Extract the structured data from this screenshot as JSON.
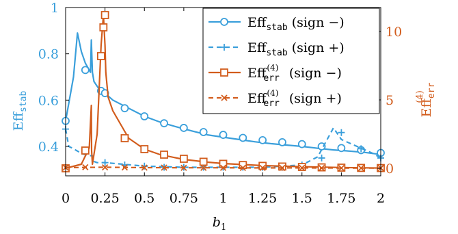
{
  "chart_data": {
    "type": "line",
    "x_axis": {
      "label": "b",
      "label_sub": "1",
      "range": [
        0,
        2
      ],
      "ticks": [
        "0",
        "0.25",
        "0.5",
        "0.75",
        "1",
        "1.25",
        "1.5",
        "1.75",
        "2"
      ]
    },
    "y_left": {
      "label_main": "Eff",
      "label_sub": "stab",
      "range": [
        0.3,
        1.0
      ],
      "ticks": [
        "0.4",
        "0.6",
        "0.8",
        "1"
      ],
      "color": "#3a9fdb"
    },
    "y_right": {
      "label_main": "Eff",
      "label_sub": "err",
      "label_sup": "(4)",
      "range": [
        -0.3,
        11.4
      ],
      "ticks": [
        "0",
        "5",
        "10"
      ],
      "color": "#d25c1c"
    },
    "legend": {
      "placement": "top-right",
      "entries": [
        {
          "main": "Eff",
          "sub": "stab",
          "sup": "",
          "sign": "(sign −)",
          "color": "#3a9fdb",
          "dash": false,
          "marker": "circle"
        },
        {
          "main": "Eff",
          "sub": "stab",
          "sup": "",
          "sign": "(sign +)",
          "color": "#3a9fdb",
          "dash": true,
          "marker": "plus"
        },
        {
          "main": "Eff",
          "sub": "err",
          "sup": "(4)",
          "sign": "(sign −)",
          "color": "#d25c1c",
          "dash": false,
          "marker": "square"
        },
        {
          "main": "Eff",
          "sub": "err",
          "sup": "(4)",
          "sign": "(sign +)",
          "color": "#d25c1c",
          "dash": true,
          "marker": "cross"
        }
      ]
    },
    "series": [
      {
        "name": "Eff_stab (sign −)",
        "axis": "left",
        "color": "#3a9fdb",
        "dash": false,
        "marker": "circle",
        "x": [
          0,
          0.05,
          0.075,
          0.1,
          0.125,
          0.15,
          0.158,
          0.163,
          0.17,
          0.18,
          0.2,
          0.22,
          0.24,
          0.25,
          0.3,
          0.4,
          0.5,
          0.6,
          0.7,
          0.8,
          0.9,
          1.0,
          1.1,
          1.2,
          1.3,
          1.4,
          1.5,
          1.6,
          1.7,
          1.8,
          1.9,
          2.0
        ],
        "y": [
          0.51,
          0.7,
          0.89,
          0.81,
          0.76,
          0.73,
          0.72,
          0.86,
          0.72,
          0.68,
          0.66,
          0.64,
          0.636,
          0.63,
          0.6,
          0.565,
          0.53,
          0.505,
          0.485,
          0.467,
          0.45,
          0.44,
          0.43,
          0.42,
          0.412,
          0.406,
          0.4,
          0.392,
          0.385,
          0.38,
          0.374,
          0.365
        ],
        "marker_x": [
          0,
          0.125,
          0.225,
          0.25,
          0.375,
          0.5,
          0.625,
          0.75,
          0.875,
          1.0,
          1.125,
          1.25,
          1.375,
          1.5,
          1.625,
          1.75,
          1.875,
          2.0
        ],
        "marker_y": [
          0.51,
          0.73,
          0.64,
          0.63,
          0.565,
          0.53,
          0.5,
          0.48,
          0.462,
          0.45,
          0.437,
          0.427,
          0.418,
          0.41,
          0.4,
          0.393,
          0.384,
          0.372
        ]
      },
      {
        "name": "Eff_stab (sign +)",
        "axis": "left",
        "color": "#3a9fdb",
        "dash": true,
        "marker": "plus",
        "x": [
          0,
          0.02,
          0.05,
          0.1,
          0.15,
          0.17,
          0.18,
          0.2,
          0.25,
          0.5,
          0.75,
          1.0,
          1.25,
          1.5,
          1.6,
          1.7,
          1.75,
          1.85,
          1.95,
          2.0
        ],
        "y": [
          0.475,
          0.4,
          0.39,
          0.37,
          0.36,
          0.36,
          0.335,
          0.33,
          0.33,
          0.315,
          0.31,
          0.31,
          0.31,
          0.32,
          0.355,
          0.48,
          0.43,
          0.4,
          0.37,
          0.35
        ],
        "marker_x": [
          0,
          0.125,
          0.25,
          0.375,
          0.5,
          0.625,
          0.75,
          0.875,
          1.0,
          1.125,
          1.25,
          1.375,
          1.5,
          1.625,
          1.75,
          1.875,
          2.0
        ],
        "marker_y": [
          0.475,
          0.37,
          0.33,
          0.32,
          0.315,
          0.31,
          0.31,
          0.31,
          0.31,
          0.31,
          0.31,
          0.31,
          0.32,
          0.35,
          0.46,
          0.39,
          0.35
        ]
      },
      {
        "name": "Eff_err^(4) (sign −)",
        "axis": "right",
        "color": "#d25c1c",
        "dash": false,
        "marker": "square",
        "x": [
          0,
          0.1,
          0.15,
          0.163,
          0.165,
          0.17,
          0.2,
          0.225,
          0.24,
          0.25,
          0.255,
          0.27,
          0.3,
          0.4,
          0.5,
          0.6,
          0.75,
          0.9,
          1.0,
          1.25,
          1.5,
          1.75,
          2.0
        ],
        "y": [
          0,
          0.3,
          1.5,
          4.6,
          1.3,
          0.3,
          2.5,
          9.0,
          11.2,
          9.0,
          7.0,
          5.2,
          4.2,
          2.2,
          1.4,
          1.0,
          0.65,
          0.45,
          0.35,
          0.2,
          0.12,
          0.06,
          0.02
        ],
        "marker_x": [
          0,
          0.125,
          0.225,
          0.24,
          0.25,
          0.375,
          0.5,
          0.625,
          0.75,
          0.875,
          1.0,
          1.125,
          1.25,
          1.375,
          1.5,
          1.625,
          1.75,
          1.875,
          2.0
        ],
        "marker_y": [
          0,
          1.3,
          8.2,
          10.3,
          11.2,
          2.2,
          1.4,
          1.0,
          0.7,
          0.48,
          0.33,
          0.24,
          0.18,
          0.13,
          0.1,
          0.07,
          0.05,
          0.03,
          0.02
        ]
      },
      {
        "name": "Eff_err^(4) (sign +)",
        "axis": "right",
        "color": "#d25c1c",
        "dash": true,
        "marker": "cross",
        "x": [
          0,
          0.25,
          0.5,
          0.75,
          1.0,
          1.25,
          1.5,
          1.75,
          2.0
        ],
        "y": [
          0.05,
          0.08,
          0.05,
          0.04,
          0.04,
          0.03,
          0.03,
          0.02,
          0.02
        ],
        "marker_x": [
          0,
          0.125,
          0.25,
          0.375,
          0.5,
          0.625,
          0.75,
          0.875,
          1.0,
          1.125,
          1.25,
          1.375,
          1.5,
          1.625,
          1.75,
          1.875,
          2.0
        ],
        "marker_y": [
          0.05,
          0.08,
          0.07,
          0.06,
          0.05,
          0.05,
          0.04,
          0.04,
          0.04,
          0.03,
          0.03,
          0.03,
          0.03,
          0.02,
          0.02,
          0.02,
          0.02
        ]
      }
    ]
  }
}
